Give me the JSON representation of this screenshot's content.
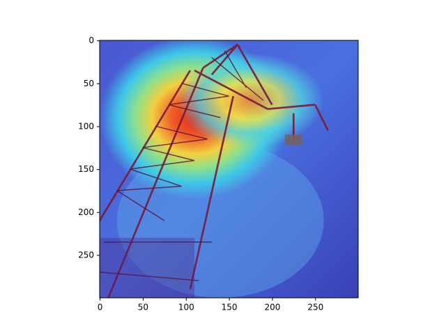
{
  "chart_data": {
    "type": "image",
    "xlim": [
      -0.5,
      299.5
    ],
    "ylim": [
      299.5,
      -0.5
    ],
    "xticks": [
      0,
      50,
      100,
      150,
      200,
      250
    ],
    "yticks": [
      0,
      50,
      100,
      150,
      200,
      250
    ]
  }
}
